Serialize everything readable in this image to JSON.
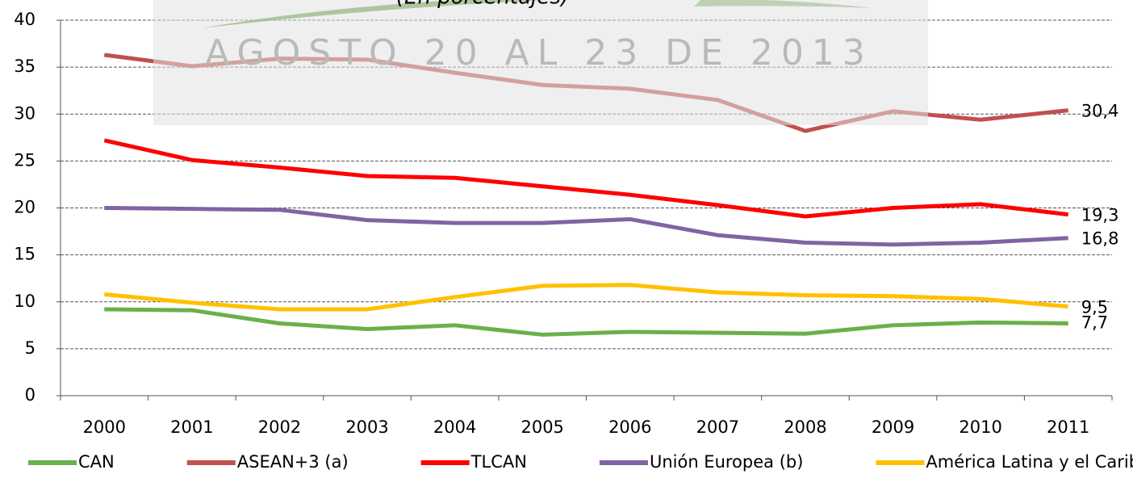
{
  "chart_data": {
    "type": "line",
    "subtitle": "(En porcentajes)",
    "annotation": "AGOSTO 20 AL 23 DE 2013",
    "categories": [
      "2000",
      "2001",
      "2002",
      "2003",
      "2004",
      "2005",
      "2006",
      "2007",
      "2008",
      "2009",
      "2010",
      "2011"
    ],
    "series": [
      {
        "name": "CAN",
        "color": "#6ab04c",
        "values": [
          9.2,
          9.1,
          7.7,
          7.1,
          7.5,
          6.5,
          6.8,
          6.7,
          6.6,
          7.5,
          7.8,
          7.7
        ],
        "value_labels": [
          null,
          null,
          null,
          null,
          null,
          null,
          null,
          null,
          null,
          null,
          null,
          "7,7"
        ]
      },
      {
        "name": "ASEAN+3 (a)",
        "color": "#c0504d",
        "values": [
          36.3,
          35.1,
          35.9,
          35.8,
          34.4,
          33.1,
          32.7,
          31.5,
          28.2,
          30.3,
          29.4,
          30.4
        ],
        "value_labels": [
          null,
          null,
          null,
          null,
          null,
          null,
          null,
          null,
          null,
          null,
          null,
          "30,4"
        ]
      },
      {
        "name": "TLCAN",
        "color": "#ff0000",
        "values": [
          27.2,
          25.1,
          24.3,
          23.4,
          23.2,
          22.3,
          21.4,
          20.3,
          19.1,
          20.0,
          20.4,
          19.3
        ],
        "value_labels": [
          null,
          null,
          null,
          null,
          null,
          null,
          null,
          null,
          null,
          null,
          null,
          "19,3"
        ]
      },
      {
        "name": "Unión Europea (b)",
        "color": "#8064a2",
        "values": [
          20.0,
          19.9,
          19.8,
          18.7,
          18.4,
          18.4,
          18.8,
          17.1,
          16.3,
          16.1,
          16.3,
          16.8
        ],
        "value_labels": [
          null,
          null,
          null,
          null,
          null,
          null,
          null,
          null,
          null,
          null,
          null,
          "16,8"
        ]
      },
      {
        "name": "América Latina y el Caribe",
        "color": "#ffc000",
        "values": [
          10.8,
          9.9,
          9.2,
          9.2,
          10.5,
          11.7,
          11.8,
          11.0,
          10.7,
          10.6,
          10.3,
          9.5
        ],
        "value_labels": [
          null,
          null,
          null,
          null,
          null,
          null,
          null,
          null,
          null,
          null,
          null,
          "9,5"
        ]
      }
    ],
    "ylim": [
      0,
      40
    ],
    "yticks": [
      0,
      5,
      10,
      15,
      20,
      25,
      30,
      35,
      40
    ],
    "grid": true
  }
}
